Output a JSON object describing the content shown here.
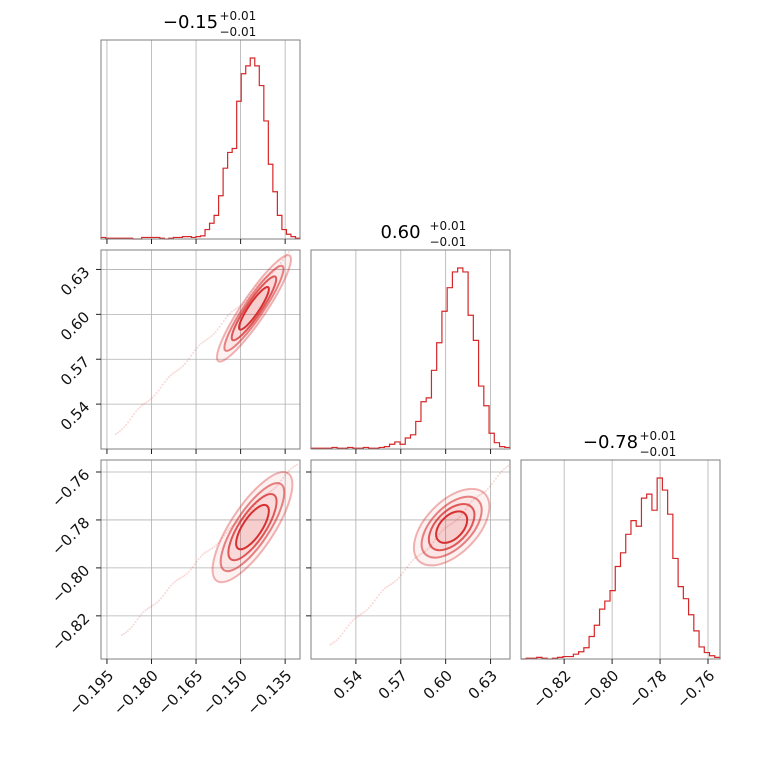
{
  "chart_data": {
    "type": "corner",
    "color": "#d62728",
    "grid": true,
    "params": [
      {
        "title": {
          "value": "−0.15",
          "plus": "+0.01",
          "minus": "−0.01"
        },
        "range": [
          -0.197,
          -0.13
        ],
        "ticks": [
          -0.195,
          -0.18,
          -0.165,
          -0.15,
          -0.135
        ],
        "tick_labels": [
          "−0.195",
          "−0.180",
          "−0.165",
          "−0.150",
          "−0.135"
        ],
        "hist_bins": [
          -0.197,
          -0.13
        ],
        "hist_counts": [
          2,
          1,
          1,
          1,
          1,
          1,
          1,
          0,
          0,
          2,
          2,
          2,
          2,
          1,
          0,
          1,
          2,
          2,
          3,
          3,
          2,
          3,
          4,
          12,
          20,
          30,
          55,
          90,
          110,
          115,
          175,
          210,
          220,
          230,
          220,
          195,
          150,
          95,
          60,
          30,
          12,
          6,
          3,
          1
        ]
      },
      {
        "title": {
          "value": "0.60",
          "plus": "+0.01",
          "minus": "−0.01"
        },
        "range": [
          0.51,
          0.643
        ],
        "ticks": [
          0.54,
          0.57,
          0.6,
          0.63
        ],
        "tick_labels": [
          "0.54",
          "0.57",
          "0.60",
          "0.63"
        ],
        "hist_counts": [
          1,
          1,
          1,
          1,
          2,
          1,
          1,
          2,
          1,
          1,
          2,
          1,
          1,
          2,
          3,
          6,
          9,
          6,
          14,
          18,
          35,
          60,
          65,
          100,
          135,
          175,
          205,
          225,
          230,
          225,
          170,
          138,
          80,
          55,
          20,
          8,
          3,
          2
        ]
      },
      {
        "title": {
          "value": "−0.78",
          "plus": "+0.01",
          "minus": "−0.01"
        },
        "range": [
          -0.838,
          -0.755
        ],
        "ticks": [
          -0.82,
          -0.8,
          -0.78,
          -0.76
        ],
        "tick_labels": [
          "−0.82",
          "−0.80",
          "−0.78",
          "−0.76"
        ],
        "hist_counts": [
          0,
          1,
          1,
          2,
          1,
          0,
          1,
          2,
          3,
          3,
          6,
          9,
          14,
          28,
          42,
          62,
          72,
          85,
          115,
          132,
          155,
          172,
          165,
          200,
          205,
          185,
          225,
          210,
          180,
          125,
          90,
          75,
          55,
          35,
          15,
          8,
          4,
          2
        ]
      }
    ],
    "pairs": [
      {
        "row": 1,
        "col": 0,
        "center": [
          -0.1455,
          0.604
        ],
        "slope": 2.94,
        "major": 0.012,
        "minor": 0.0009,
        "tail_start": [
          -0.192,
          0.52
        ],
        "tail_end": [
          -0.131,
          0.646
        ]
      },
      {
        "row": 2,
        "col": 0,
        "center": [
          -0.146,
          -0.783
        ],
        "slope": 1.87,
        "major": 0.012,
        "minor": 0.001,
        "tail_start": [
          -0.19,
          -0.828
        ],
        "tail_end": [
          -0.131,
          -0.757
        ]
      },
      {
        "row": 2,
        "col": 1,
        "center": [
          0.604,
          -0.783
        ],
        "slope": 0.64,
        "major": 0.022,
        "minor": 0.0012,
        "tail_start": [
          0.523,
          -0.832
        ],
        "tail_end": [
          0.643,
          -0.757
        ]
      }
    ]
  }
}
